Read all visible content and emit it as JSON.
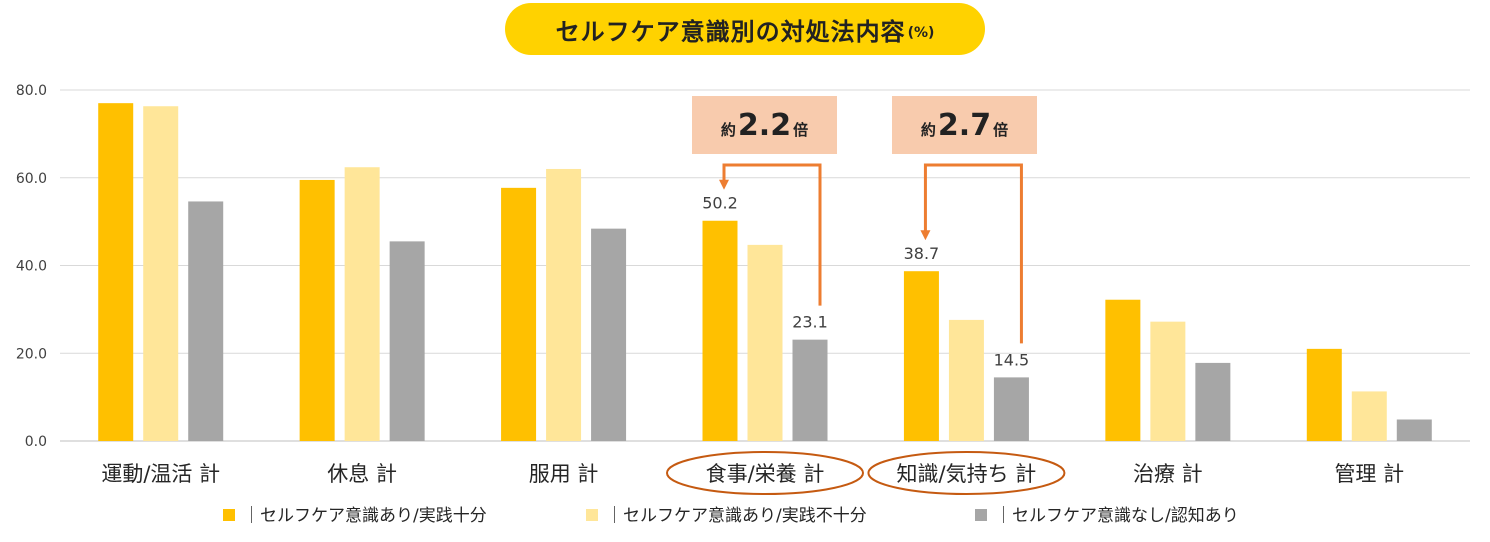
{
  "title": {
    "main": "セルフケア意識別の対処法内容",
    "unit": "(%)"
  },
  "chart_data": {
    "type": "bar",
    "ylim": [
      0,
      80
    ],
    "yticks": [
      "0.0",
      "20.0",
      "40.0",
      "60.0",
      "80.0"
    ],
    "categories": [
      "運動/温活 計",
      "休息 計",
      "服用 計",
      "食事/栄養 計",
      "知識/気持ち 計",
      "治療 計",
      "管理 計"
    ],
    "series": [
      {
        "name": "｜セルフケア意識あり/実践十分",
        "color": "#FFC000",
        "values": [
          77.0,
          59.5,
          57.7,
          50.2,
          38.7,
          32.2,
          21.0
        ]
      },
      {
        "name": "｜セルフケア意識あり/実践不十分",
        "color": "#FFE699",
        "values": [
          76.3,
          62.4,
          62.0,
          44.7,
          27.6,
          27.2,
          11.3
        ]
      },
      {
        "name": "｜セルフケア意識なし/認知あり",
        "color": "#A6A6A6",
        "values": [
          54.6,
          45.5,
          48.4,
          23.1,
          14.5,
          17.8,
          4.9
        ]
      }
    ],
    "data_labels": [
      {
        "text": "50.2",
        "category": 3,
        "series": 0
      },
      {
        "text": "23.1",
        "category": 3,
        "series": 2
      },
      {
        "text": "38.7",
        "category": 4,
        "series": 0
      },
      {
        "text": "14.5",
        "category": 4,
        "series": 2
      }
    ],
    "highlighted_categories": [
      3,
      4
    ],
    "annotations": [
      {
        "prefix": "約",
        "value": "2.2",
        "suffix": "倍",
        "category": 3
      },
      {
        "prefix": "約",
        "value": "2.7",
        "suffix": "倍",
        "category": 4
      }
    ],
    "colors": {
      "accent_arrow": "#ED7D31",
      "highlight_ring": "#C55A11",
      "grid": "#D9D9D9",
      "axis": "#BFBFBF",
      "tick_text": "#404040"
    }
  }
}
